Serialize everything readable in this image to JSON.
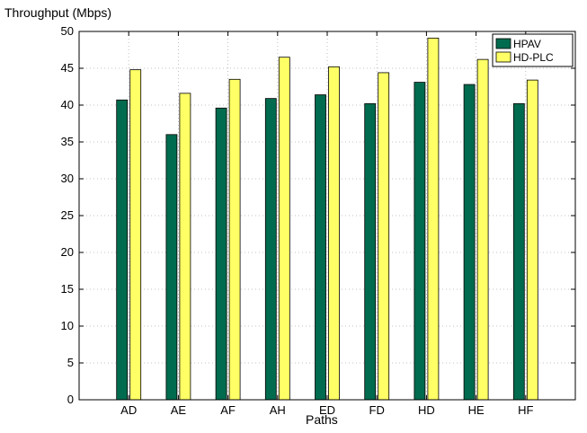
{
  "chart_data": {
    "type": "bar",
    "xlabel": "Paths",
    "ylabel": "Throughput (Mbps)",
    "categories": [
      "AD",
      "AE",
      "AF",
      "AH",
      "ED",
      "FD",
      "HD",
      "HE",
      "HF"
    ],
    "series": [
      {
        "name": "HPAV",
        "color": "#006b4e",
        "values": [
          40.7,
          36.0,
          39.6,
          40.9,
          41.4,
          40.2,
          43.1,
          42.8,
          40.2
        ]
      },
      {
        "name": "HD-PLC",
        "color": "#ffff66",
        "values": [
          44.8,
          41.6,
          43.5,
          46.5,
          45.2,
          44.4,
          49.1,
          46.2,
          43.4
        ]
      }
    ],
    "ylim": [
      0,
      50
    ],
    "yticks": [
      0,
      5,
      10,
      15,
      20,
      25,
      30,
      35,
      40,
      45,
      50
    ],
    "grid": true,
    "legend_position": "top-right"
  }
}
